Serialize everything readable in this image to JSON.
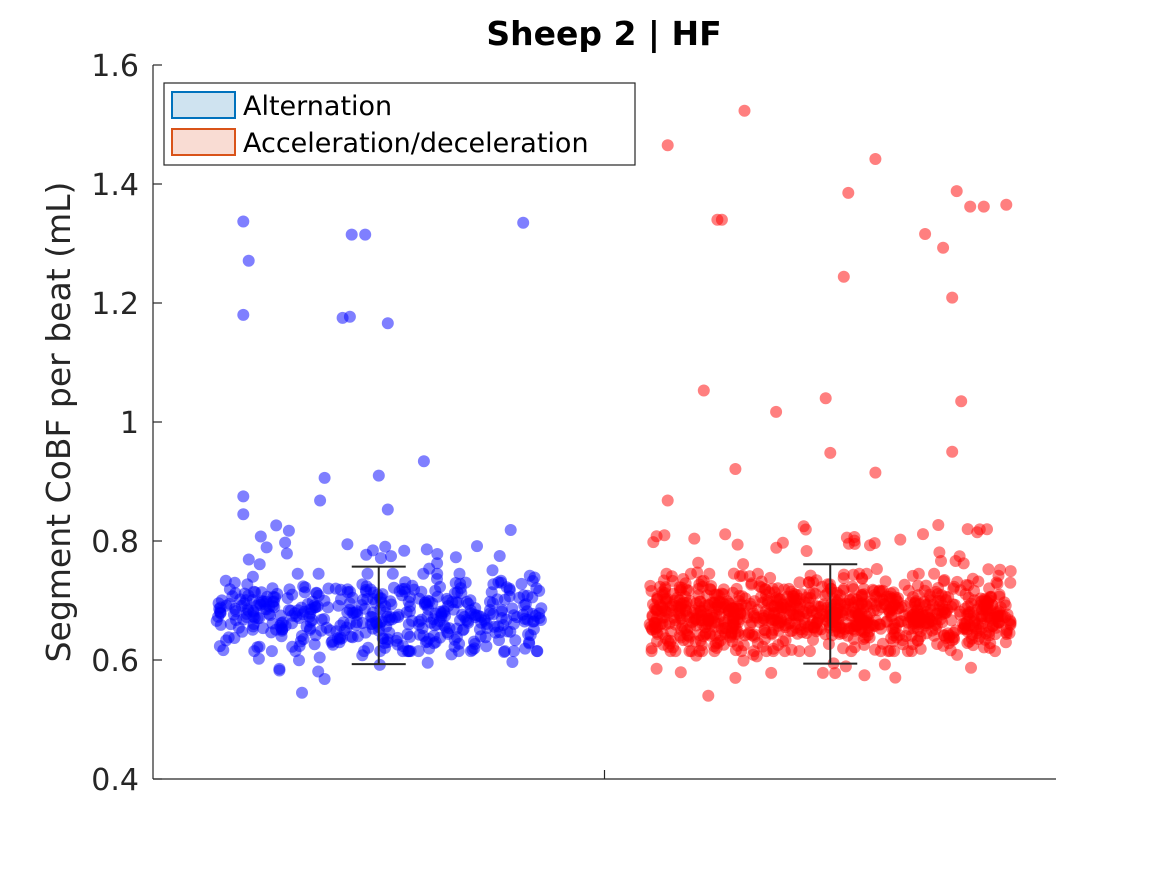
{
  "chart_data": {
    "type": "scatter",
    "title": "Sheep 2 | HF",
    "xlabel": "",
    "ylabel": "Segment CoBF per beat (mL)",
    "ylim": [
      0.4,
      1.6
    ],
    "yticks": [
      "0.4",
      "0.6",
      "0.8",
      "1",
      "1.2",
      "1.4",
      "1.6"
    ],
    "grid": false,
    "legend_position": "top-left",
    "legend": [
      {
        "label": "Alternation",
        "fill": "#cfe3f0",
        "stroke": "#0072bd"
      },
      {
        "label": "Acceleration/deceleration",
        "fill": "#f9dcd3",
        "stroke": "#d95319"
      }
    ],
    "groups": [
      {
        "name": "Alternation",
        "color": "#0000ff",
        "x_center": 0.75,
        "jitter_half_width": 0.18,
        "median": 0.675,
        "errorbar": [
          0.593,
          0.757
        ],
        "bulk": {
          "count": 420,
          "mean": 0.675,
          "sd": 0.032
        },
        "upper_band": {
          "count": 40,
          "min": 0.7,
          "max": 0.83
        },
        "lower_band": {
          "count": 12,
          "min": 0.58,
          "max": 0.63
        },
        "outliers": [
          [
            0.6,
            1.337
          ],
          [
            0.606,
            1.271
          ],
          [
            0.6,
            1.18
          ],
          [
            0.72,
            1.315
          ],
          [
            0.735,
            1.315
          ],
          [
            0.71,
            1.175
          ],
          [
            0.718,
            1.177
          ],
          [
            0.76,
            1.166
          ],
          [
            0.91,
            1.335
          ],
          [
            0.69,
            0.906
          ],
          [
            0.75,
            0.91
          ],
          [
            0.8,
            0.934
          ],
          [
            0.685,
            0.868
          ],
          [
            0.76,
            0.853
          ],
          [
            0.6,
            0.875
          ],
          [
            0.6,
            0.845
          ],
          [
            0.665,
            0.545
          ],
          [
            0.69,
            0.568
          ],
          [
            0.64,
            0.585
          ]
        ]
      },
      {
        "name": "Acceleration/deceleration",
        "color": "#ff0000",
        "x_center": 1.25,
        "jitter_half_width": 0.2,
        "median": 0.675,
        "errorbar": [
          0.594,
          0.761
        ],
        "bulk": {
          "count": 900,
          "mean": 0.675,
          "sd": 0.03
        },
        "upper_band": {
          "count": 60,
          "min": 0.7,
          "max": 0.83
        },
        "lower_band": {
          "count": 18,
          "min": 0.57,
          "max": 0.63
        },
        "outliers": [
          [
            1.07,
            1.465
          ],
          [
            1.155,
            1.523
          ],
          [
            1.125,
            1.34
          ],
          [
            1.13,
            1.34
          ],
          [
            1.3,
            1.442
          ],
          [
            1.27,
            1.385
          ],
          [
            1.39,
            1.388
          ],
          [
            1.405,
            1.362
          ],
          [
            1.42,
            1.362
          ],
          [
            1.445,
            1.365
          ],
          [
            1.355,
            1.316
          ],
          [
            1.375,
            1.293
          ],
          [
            1.265,
            1.244
          ],
          [
            1.385,
            1.209
          ],
          [
            1.11,
            1.053
          ],
          [
            1.19,
            1.017
          ],
          [
            1.245,
            1.04
          ],
          [
            1.395,
            1.035
          ],
          [
            1.25,
            0.948
          ],
          [
            1.3,
            0.915
          ],
          [
            1.385,
            0.95
          ],
          [
            1.145,
            0.921
          ],
          [
            1.07,
            0.868
          ],
          [
            1.115,
            0.54
          ],
          [
            1.145,
            0.57
          ]
        ]
      }
    ]
  }
}
